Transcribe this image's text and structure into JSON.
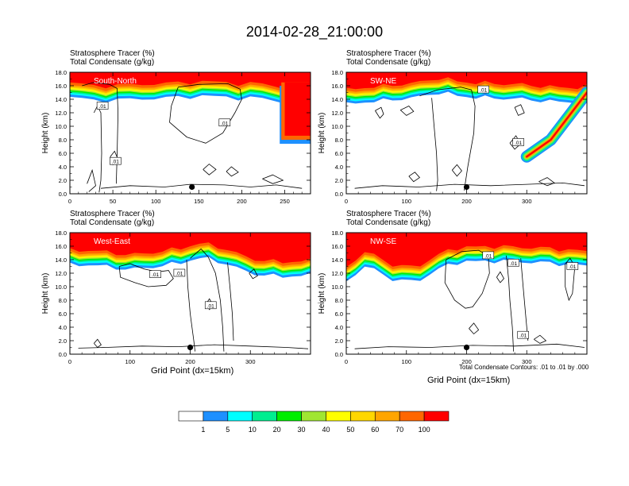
{
  "page_title": "2014-02-28_21:00:00",
  "panel_header": {
    "line1": "Stratosphere Tracer   (%)",
    "line2": "Total Condensate   (g/kg)"
  },
  "xaxis_title": "Grid Point (dx=15km)",
  "contour_note": "Total Condensate Contours: .01 to .01 by .000",
  "colors": {
    "bar": [
      "#ffffff",
      "#1e90ff",
      "#00ffff",
      "#00ee90",
      "#00ee00",
      "#a0e632",
      "#ffff00",
      "#ffd700",
      "#ffa500",
      "#ff6600",
      "#ff0000"
    ],
    "contour": "#000000",
    "marker": "#000000"
  },
  "colorbar": {
    "labels": [
      "1",
      "5",
      "10",
      "20",
      "30",
      "40",
      "50",
      "60",
      "70",
      "100"
    ]
  },
  "chart_data": [
    {
      "type": "heatmap",
      "title": "South-North",
      "contour_labels": [
        ".01",
        ".01",
        ".01"
      ],
      "xlabel": "",
      "ylabel": "Height (km)",
      "xlim": [
        0,
        280
      ],
      "ylim": [
        0,
        18
      ],
      "xticks": [
        0,
        50,
        100,
        150,
        200,
        250
      ],
      "yticks": [
        "0.0",
        "2.0",
        "4.0",
        "6.0",
        "8.0",
        "10.0",
        "12.0",
        "14.0",
        "16.0",
        "18.0"
      ],
      "tropopause_km": [
        15.6,
        15.5,
        15.3,
        15.2,
        15.3,
        15.4,
        15.5,
        15.5,
        15.6,
        15.7,
        15.8,
        15.9,
        15.8,
        15.7,
        15.6,
        15.6,
        15.5,
        15.2,
        14.9,
        14.7,
        14.8
      ],
      "tracer_intrusion": {
        "x_range": [
          246,
          280
        ],
        "bottom_km": 8.0
      },
      "station_marker": {
        "x": 142,
        "y_km": 1.0
      }
    },
    {
      "type": "heatmap",
      "title": "SW-NE",
      "contour_labels": [
        ".01",
        ".01"
      ],
      "xlabel": "",
      "ylabel": "Height (km)",
      "xlim": [
        0,
        400
      ],
      "ylim": [
        0,
        18
      ],
      "xticks": [
        0,
        100,
        200,
        300
      ],
      "yticks": [
        "0.0",
        "2.0",
        "4.0",
        "6.0",
        "8.0",
        "10.0",
        "12.0",
        "14.0",
        "16.0",
        "18.0"
      ],
      "tropopause_km": [
        14.6,
        14.8,
        15.0,
        15.1,
        15.2,
        15.3,
        15.5,
        15.6,
        15.8,
        16.1,
        16.4,
        16.2,
        15.9,
        15.8,
        15.7,
        15.6,
        15.6,
        15.5,
        15.5,
        15.4,
        15.3,
        15.2,
        15.1,
        15.0,
        15.0,
        15.0,
        15.1
      ],
      "tracer_intrusion": {
        "path_x": [
          300,
          340,
          370,
          400
        ],
        "path_km": [
          5.5,
          8.0,
          11.5,
          15.0
        ]
      },
      "station_marker": {
        "x": 200,
        "y_km": 1.0
      }
    },
    {
      "type": "heatmap",
      "title": "West-East",
      "contour_labels": [
        ".01",
        ".01",
        ".01"
      ],
      "xlabel": "Grid Point (dx=15km)",
      "ylabel": "Height (km)",
      "xlim": [
        0,
        400
      ],
      "ylim": [
        0,
        18
      ],
      "xticks": [
        0,
        100,
        200,
        300
      ],
      "yticks": [
        "0.0",
        "2.0",
        "4.0",
        "6.0",
        "8.0",
        "10.0",
        "12.0",
        "14.0",
        "16.0",
        "18.0"
      ],
      "tropopause_km": [
        14.6,
        14.7,
        14.6,
        14.5,
        14.4,
        14.2,
        14.0,
        14.0,
        14.2,
        14.3,
        14.5,
        14.7,
        15.0,
        15.3,
        15.6,
        15.5,
        15.2,
        14.7,
        14.2,
        13.7,
        13.3,
        13.1,
        13.0,
        12.9,
        13.0,
        13.0,
        13.1
      ],
      "station_marker": {
        "x": 200,
        "y_km": 1.0
      }
    },
    {
      "type": "heatmap",
      "title": "NW-SE",
      "contour_labels": [
        ".01",
        ".01",
        ".01",
        ".01"
      ],
      "xlabel": "Grid Point (dx=15km)",
      "ylabel": "Height (km)",
      "xlim": [
        0,
        400
      ],
      "ylim": [
        0,
        18
      ],
      "xticks": [
        0,
        100,
        200,
        300
      ],
      "yticks": [
        "0.0",
        "2.0",
        "4.0",
        "6.0",
        "8.0",
        "10.0",
        "12.0",
        "14.0",
        "16.0",
        "18.0"
      ],
      "tropopause_km": [
        12.0,
        13.5,
        14.2,
        14.0,
        13.2,
        12.5,
        12.3,
        12.2,
        12.5,
        13.2,
        14.0,
        14.6,
        15.0,
        15.1,
        15.1,
        15.2,
        15.2,
        15.2,
        15.1,
        15.1,
        15.0,
        15.0,
        14.9,
        14.8,
        14.7,
        14.6,
        14.4
      ],
      "station_marker": {
        "x": 200,
        "y_km": 1.0
      }
    }
  ]
}
